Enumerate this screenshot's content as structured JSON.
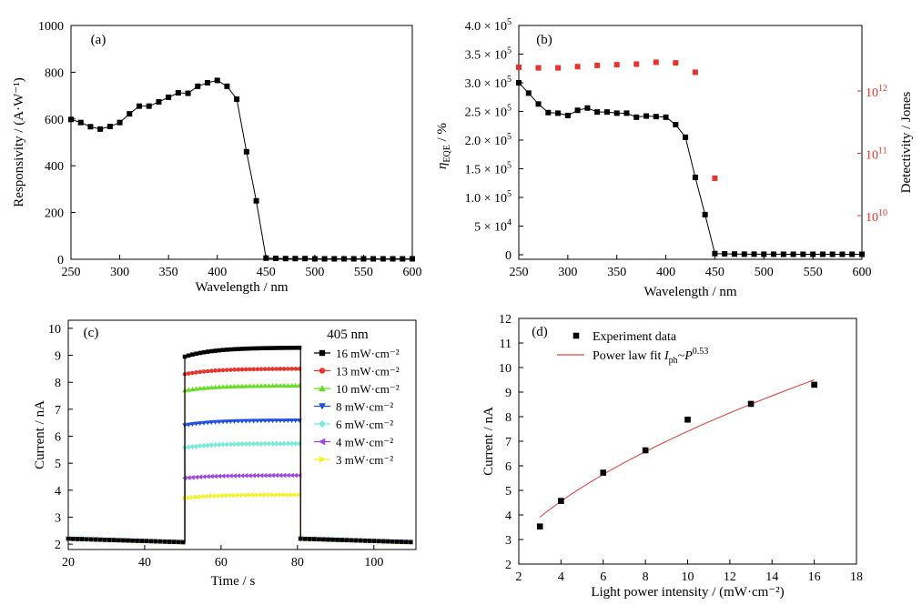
{
  "colors": {
    "black": "#000000",
    "red": "#e8332c",
    "green": "#66dd22",
    "blue": "#1f4fe0",
    "cyan": "#77ead8",
    "purple": "#9b45e4",
    "yellow": "#f2f21e",
    "fit": "#d94a4a"
  },
  "chart_data": [
    {
      "id": "a",
      "type": "line",
      "panel_label": "(a)",
      "xlabel": "Wavelength / nm",
      "ylabel": "Responsivity / (A·W⁻¹)",
      "xlim": [
        250,
        600
      ],
      "ylim": [
        0,
        1000
      ],
      "xticks": [
        "250",
        "300",
        "350",
        "400",
        "450",
        "500",
        "550",
        "600"
      ],
      "yticks": [
        "0",
        "200",
        "400",
        "600",
        "800",
        "1000"
      ],
      "series": [
        {
          "name": "Responsivity",
          "x": [
            250,
            260,
            270,
            280,
            290,
            300,
            310,
            320,
            330,
            340,
            350,
            360,
            370,
            380,
            390,
            400,
            410,
            420,
            430,
            440,
            450,
            460,
            470,
            480,
            490,
            500,
            510,
            520,
            530,
            540,
            550,
            560,
            570,
            580,
            590,
            600
          ],
          "y": [
            598,
            585,
            567,
            557,
            568,
            585,
            622,
            655,
            655,
            673,
            693,
            712,
            710,
            740,
            755,
            765,
            740,
            685,
            460,
            250,
            5,
            4,
            3,
            3,
            3,
            2,
            2,
            2,
            2,
            2,
            2,
            2,
            2,
            2,
            2,
            2
          ]
        }
      ]
    },
    {
      "id": "b",
      "type": "scatter",
      "panel_label": "(b)",
      "xlabel": "Wavelength / nm",
      "ylabel_main": "η",
      "ylabel_sub": "EQE",
      "ylabel_rest": " / %",
      "ylabel_right": "Detectivity / Jones",
      "xlim": [
        250,
        600
      ],
      "ylim_left": [
        0,
        400000
      ],
      "ylim_right_log10": [
        9.3,
        13.05
      ],
      "xticks": [
        "250",
        "300",
        "350",
        "400",
        "450",
        "500",
        "550",
        "600"
      ],
      "yticks_left": [
        {
          "value": 0,
          "mant": "0",
          "exp": ""
        },
        {
          "value": 50000,
          "mant": "5 × 10",
          "exp": "4"
        },
        {
          "value": 100000,
          "mant": "1.0 × 10",
          "exp": "5"
        },
        {
          "value": 150000,
          "mant": "1.5 × 10",
          "exp": "5"
        },
        {
          "value": 200000,
          "mant": "2.0 × 10",
          "exp": "5"
        },
        {
          "value": 250000,
          "mant": "2.5 × 10",
          "exp": "5"
        },
        {
          "value": 300000,
          "mant": "3.0 × 10",
          "exp": "5"
        },
        {
          "value": 350000,
          "mant": "3.5 × 10",
          "exp": "5"
        },
        {
          "value": 400000,
          "mant": "4.0 × 10",
          "exp": "5"
        }
      ],
      "yticks_right": [
        {
          "log": 10,
          "mant": "10",
          "exp": "10"
        },
        {
          "log": 11,
          "mant": "10",
          "exp": "11"
        },
        {
          "log": 12,
          "mant": "10",
          "exp": "12"
        }
      ],
      "series": [
        {
          "name": "EQE",
          "axis": "left",
          "x": [
            250,
            260,
            270,
            280,
            290,
            300,
            310,
            320,
            330,
            340,
            350,
            360,
            370,
            380,
            390,
            400,
            410,
            420,
            430,
            440,
            450,
            460,
            470,
            480,
            490,
            500,
            510,
            520,
            530,
            540,
            550,
            560,
            570,
            580,
            590,
            600
          ],
          "y": [
            300000,
            282000,
            263000,
            248000,
            247000,
            243000,
            252000,
            256000,
            249000,
            249000,
            247000,
            247000,
            240000,
            242000,
            241000,
            240000,
            227000,
            205000,
            135000,
            70000,
            2000,
            1500,
            1200,
            1000,
            1000,
            900,
            900,
            800,
            800,
            800,
            800,
            800,
            800,
            800,
            800,
            800
          ]
        },
        {
          "name": "Detectivity",
          "axis": "right",
          "x": [
            250,
            270,
            290,
            310,
            330,
            350,
            370,
            390,
            410,
            430,
            450
          ],
          "log10_y": [
            12.38,
            12.37,
            12.37,
            12.39,
            12.41,
            12.42,
            12.43,
            12.46,
            12.45,
            12.3,
            10.6
          ]
        }
      ]
    },
    {
      "id": "c",
      "type": "line",
      "panel_label": "(c)",
      "legend_title": "405 nm",
      "xlabel": "Time / s",
      "ylabel": "Current / nA",
      "xlim": [
        20,
        111
      ],
      "ylim": [
        1.8,
        10.3
      ],
      "xticks": [
        "20",
        "40",
        "60",
        "80",
        "100"
      ],
      "yticks": [
        "2",
        "3",
        "4",
        "5",
        "6",
        "7",
        "8",
        "9",
        "10"
      ],
      "time_on": 50.5,
      "time_off": 80.8,
      "series": [
        {
          "name": "16 mW·cm⁻²",
          "marker": "square",
          "color_key": "black",
          "on_start": 8.95,
          "on_end": 9.28,
          "off_start": 2.2,
          "off_end": 2.07
        },
        {
          "name": "13 mW·cm⁻²",
          "marker": "circle",
          "color_key": "red",
          "on_start": 8.3,
          "on_end": 8.5,
          "off_start": 2.2,
          "off_end": 2.07
        },
        {
          "name": "10 mW·cm⁻²",
          "marker": "triangle",
          "color_key": "green",
          "on_start": 7.7,
          "on_end": 7.88,
          "off_start": 2.2,
          "off_end": 2.07
        },
        {
          "name": "8 mW·cm⁻²",
          "marker": "tri-down",
          "color_key": "blue",
          "on_start": 6.4,
          "on_end": 6.58,
          "off_start": 2.2,
          "off_end": 2.07
        },
        {
          "name": "6 mW·cm⁻²",
          "marker": "diamond",
          "color_key": "cyan",
          "on_start": 5.58,
          "on_end": 5.73,
          "off_start": 2.2,
          "off_end": 2.07
        },
        {
          "name": "4 mW·cm⁻²",
          "marker": "tri-left",
          "color_key": "purple",
          "on_start": 4.45,
          "on_end": 4.55,
          "off_start": 2.2,
          "off_end": 2.07
        },
        {
          "name": "3 mW·cm⁻²",
          "marker": "tri-right",
          "color_key": "yellow",
          "on_start": 3.7,
          "on_end": 3.83,
          "off_start": 2.2,
          "off_end": 2.07
        }
      ]
    },
    {
      "id": "d",
      "type": "scatter",
      "panel_label": "(d)",
      "xlabel": "Light power intensity / (mW·cm⁻²)",
      "ylabel": "Current / nA",
      "xlim": [
        2,
        18
      ],
      "ylim": [
        2,
        12
      ],
      "xticks": [
        "2",
        "4",
        "6",
        "8",
        "10",
        "12",
        "14",
        "16",
        "18"
      ],
      "yticks": [
        "2",
        "3",
        "4",
        "5",
        "6",
        "7",
        "8",
        "9",
        "10",
        "11",
        "12"
      ],
      "legend": {
        "data_label": "Experiment data",
        "fit_label_prefix": "Power law fit ",
        "fit_label_I": "I",
        "fit_label_sub": "ph",
        "fit_label_mid": "~",
        "fit_label_P": "P",
        "fit_label_exp": "0.53"
      },
      "series": [
        {
          "name": "Experiment data",
          "x": [
            3,
            4,
            6,
            8,
            10,
            13,
            16
          ],
          "y": [
            3.53,
            4.57,
            5.72,
            6.63,
            7.88,
            8.52,
            9.3
          ]
        },
        {
          "name": "Power law fit",
          "coef": 2.185,
          "exponent": 0.53,
          "x_range": [
            3,
            16
          ]
        }
      ]
    }
  ]
}
